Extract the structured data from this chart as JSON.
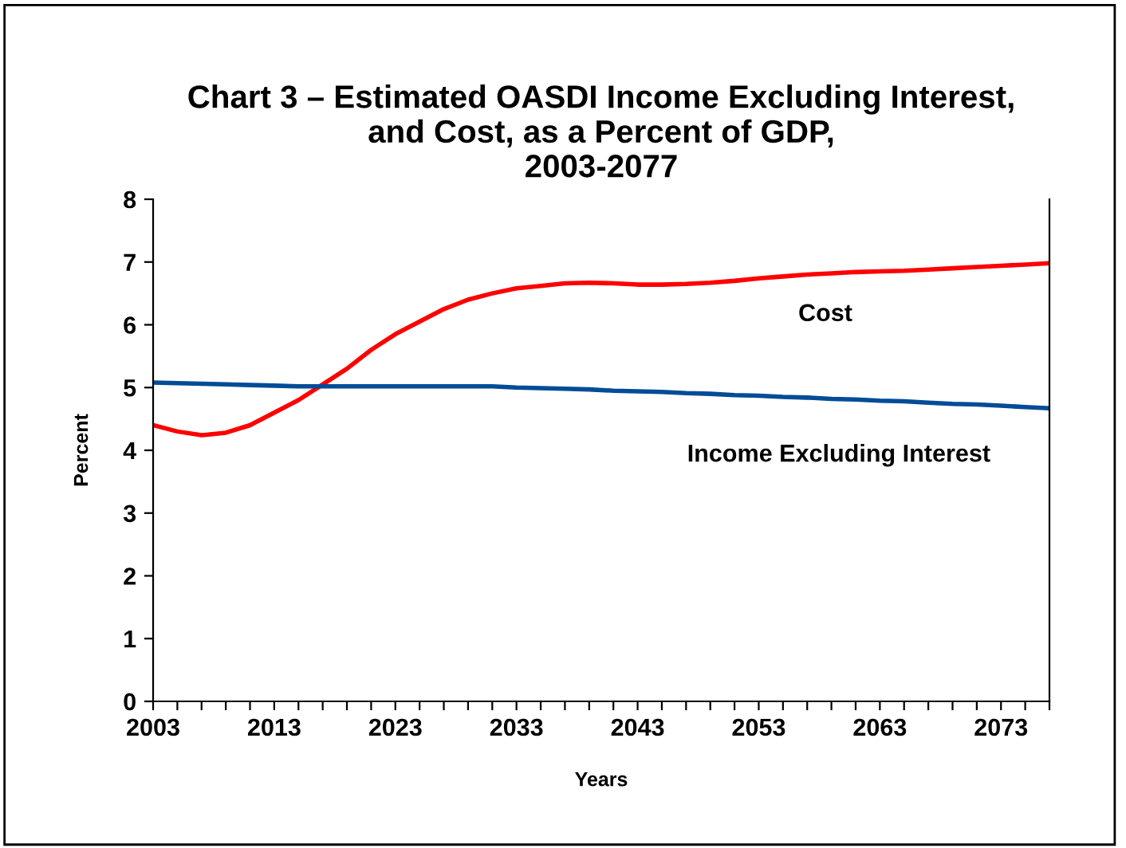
{
  "chart_data": {
    "type": "line",
    "title": "Chart 3 – Estimated OASDI Income Excluding Interest,\nand Cost, as a Percent of GDP,\n2003-2077",
    "xlabel": "Years",
    "ylabel": "Percent",
    "x": [
      2003,
      2005,
      2007,
      2009,
      2011,
      2013,
      2015,
      2017,
      2019,
      2021,
      2023,
      2025,
      2027,
      2029,
      2031,
      2033,
      2035,
      2037,
      2039,
      2041,
      2043,
      2045,
      2047,
      2049,
      2051,
      2053,
      2055,
      2057,
      2059,
      2061,
      2063,
      2065,
      2067,
      2069,
      2071,
      2073,
      2075,
      2077
    ],
    "series": [
      {
        "name": "Cost",
        "color": "#ff0000",
        "values": [
          4.4,
          4.3,
          4.24,
          4.28,
          4.4,
          4.6,
          4.8,
          5.05,
          5.3,
          5.6,
          5.85,
          6.05,
          6.25,
          6.4,
          6.5,
          6.58,
          6.62,
          6.66,
          6.67,
          6.66,
          6.64,
          6.64,
          6.65,
          6.67,
          6.7,
          6.74,
          6.77,
          6.8,
          6.82,
          6.84,
          6.85,
          6.86,
          6.88,
          6.9,
          6.92,
          6.94,
          6.96,
          6.98
        ]
      },
      {
        "name": "Income Excluding Interest",
        "color": "#004c97",
        "values": [
          5.08,
          5.07,
          5.06,
          5.05,
          5.04,
          5.03,
          5.02,
          5.02,
          5.02,
          5.02,
          5.02,
          5.02,
          5.02,
          5.02,
          5.02,
          5.0,
          4.99,
          4.98,
          4.97,
          4.95,
          4.94,
          4.93,
          4.91,
          4.9,
          4.88,
          4.87,
          4.85,
          4.84,
          4.82,
          4.81,
          4.79,
          4.78,
          4.76,
          4.74,
          4.73,
          4.71,
          4.69,
          4.67
        ]
      }
    ],
    "xlim": [
      2003,
      2077
    ],
    "ylim": [
      0,
      8
    ],
    "yticks": [
      0,
      1,
      2,
      3,
      4,
      5,
      6,
      7,
      8
    ],
    "xticks": [
      2003,
      {
        "value": 2005,
        "label": null
      },
      {
        "value": 2007,
        "label": null
      },
      {
        "value": 2009,
        "label": null
      },
      {
        "value": 2011,
        "label": null
      },
      2013,
      {
        "value": 2015,
        "label": null
      },
      {
        "value": 2017,
        "label": null
      },
      {
        "value": 2019,
        "label": null
      },
      {
        "value": 2021,
        "label": null
      },
      2023,
      {
        "value": 2025,
        "label": null
      },
      {
        "value": 2027,
        "label": null
      },
      {
        "value": 2029,
        "label": null
      },
      {
        "value": 2031,
        "label": null
      },
      2033,
      {
        "value": 2035,
        "label": null
      },
      {
        "value": 2037,
        "label": null
      },
      {
        "value": 2039,
        "label": null
      },
      {
        "value": 2041,
        "label": null
      },
      2043,
      {
        "value": 2045,
        "label": null
      },
      {
        "value": 2047,
        "label": null
      },
      {
        "value": 2049,
        "label": null
      },
      {
        "value": 2051,
        "label": null
      },
      2053,
      {
        "value": 2055,
        "label": null
      },
      {
        "value": 2057,
        "label": null
      },
      {
        "value": 2059,
        "label": null
      },
      {
        "value": 2061,
        "label": null
      },
      2063,
      {
        "value": 2065,
        "label": null
      },
      {
        "value": 2067,
        "label": null
      },
      {
        "value": 2069,
        "label": null
      },
      {
        "value": 2071,
        "label": null
      },
      2073,
      {
        "value": 2075,
        "label": null
      },
      {
        "value": 2077,
        "label": null
      }
    ],
    "grid": false,
    "legend": false,
    "marker": "none",
    "line_style": "solid"
  }
}
